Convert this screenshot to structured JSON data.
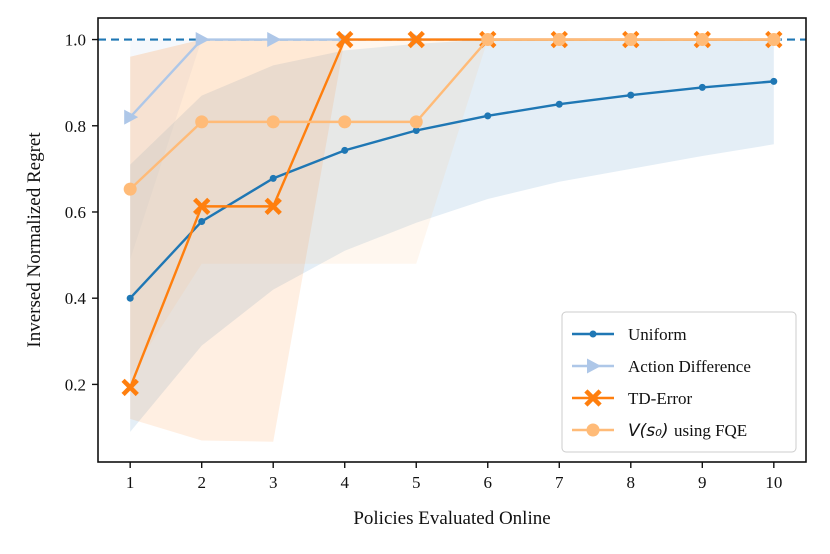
{
  "chart_data": {
    "type": "line",
    "xlabel": "Policies Evaluated Online",
    "ylabel": "Inversed Normalized Regret",
    "x": [
      1,
      2,
      3,
      4,
      5,
      6,
      7,
      8,
      9,
      10
    ],
    "xticks": [
      "1",
      "2",
      "3",
      "4",
      "5",
      "6",
      "7",
      "8",
      "9",
      "10"
    ],
    "yticks": [
      "0.2",
      "0.4",
      "0.6",
      "0.8",
      "1.0"
    ],
    "ytick_values": [
      0.2,
      0.4,
      0.6,
      0.8,
      1.0
    ],
    "xlim": [
      0.55,
      10.45
    ],
    "ylim": [
      0.02,
      1.05
    ],
    "reference_line": {
      "y": 1.0,
      "style": "dashed",
      "color": "#1f77b4"
    },
    "legend_position": "lower-right",
    "series": [
      {
        "name": "Uniform",
        "color": "#1f77b4",
        "marker": "dot",
        "values": [
          0.4,
          0.578,
          0.678,
          0.743,
          0.789,
          0.823,
          0.85,
          0.871,
          0.889,
          0.903
        ],
        "band_low": [
          0.09,
          0.29,
          0.42,
          0.51,
          0.575,
          0.63,
          0.67,
          0.7,
          0.73,
          0.757
        ],
        "band_high": [
          0.71,
          0.87,
          0.94,
          0.975,
          0.99,
          1.0,
          1.0,
          1.0,
          1.0,
          1.0
        ],
        "band_color": "#1f77b4"
      },
      {
        "name": "Action Difference",
        "color": "#aec7e8",
        "marker": "triangle-right",
        "values": [
          0.82,
          1.0,
          1.0,
          1.0,
          1.0,
          1.0,
          1.0,
          1.0,
          1.0,
          1.0
        ],
        "band_low": [
          0.49,
          1.0,
          1.0,
          1.0,
          1.0,
          1.0,
          1.0,
          1.0,
          1.0,
          1.0
        ],
        "band_high": [
          1.0,
          1.0,
          1.0,
          1.0,
          1.0,
          1.0,
          1.0,
          1.0,
          1.0,
          1.0
        ],
        "band_color": "#aec7e8"
      },
      {
        "name": "TD-Error",
        "color": "#ff7f0e",
        "marker": "x",
        "values": [
          0.193,
          0.613,
          0.613,
          1.0,
          1.0,
          1.0,
          1.0,
          1.0,
          1.0,
          1.0
        ],
        "band_low": [
          0.12,
          0.07,
          0.067,
          1.0,
          1.0,
          1.0,
          1.0,
          1.0,
          1.0,
          1.0
        ],
        "band_high": [
          0.96,
          1.0,
          1.0,
          1.0,
          1.0,
          1.0,
          1.0,
          1.0,
          1.0,
          1.0
        ],
        "band_color": "#ff7f0e"
      },
      {
        "name": "$V(s_0)$ using FQE",
        "legend_label": "using FQE",
        "legend_math": "V(s₀)",
        "color": "#ffbb78",
        "marker": "circle",
        "values": [
          0.653,
          0.809,
          0.809,
          0.809,
          0.809,
          1.0,
          1.0,
          1.0,
          1.0,
          1.0
        ],
        "band_low": [
          0.22,
          0.48,
          0.48,
          0.48,
          0.48,
          1.0,
          1.0,
          1.0,
          1.0,
          1.0
        ],
        "band_high": [
          0.96,
          1.0,
          1.0,
          1.0,
          1.0,
          1.0,
          1.0,
          1.0,
          1.0,
          1.0
        ],
        "band_color": "#ffbb78"
      }
    ]
  }
}
